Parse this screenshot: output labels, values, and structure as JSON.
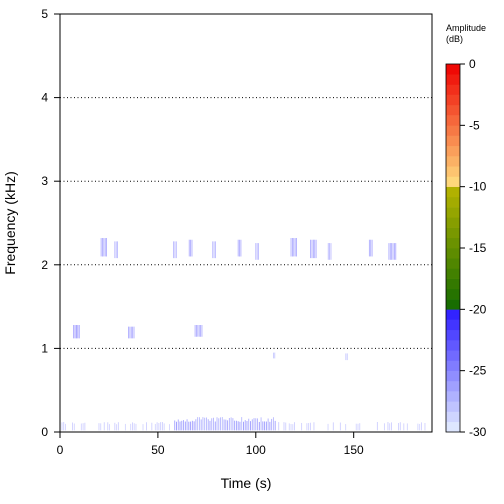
{
  "chart_data": {
    "type": "heatmap",
    "title": "",
    "xlabel": "Time (s)",
    "ylabel": "Frequency (kHz)",
    "xlim": [
      0,
      190
    ],
    "ylim": [
      0,
      5
    ],
    "x_ticks": [
      0,
      50,
      100,
      150
    ],
    "y_ticks": [
      0,
      1,
      2,
      3,
      4,
      5
    ],
    "grid": "horizontal dotted lines at 1, 2, 3, 4 kHz",
    "colorbar": {
      "title_line1": "Amplitude",
      "title_line2": "(dB)",
      "range": [
        -30,
        0
      ],
      "ticks": [
        0,
        -5,
        -10,
        -15,
        -20,
        -25,
        -30
      ],
      "position": "right",
      "bands": [
        {
          "from": -30,
          "to": -20,
          "color_low": "#e6f0ff",
          "color_high": "#2a1aff"
        },
        {
          "from": -20,
          "to": -10,
          "color_low": "#116a00",
          "color_high": "#b8b400"
        },
        {
          "from": -10,
          "to": 0,
          "color_low": "#ffe080",
          "color_high": "#ee0000"
        }
      ]
    },
    "energy_events": [
      {
        "time_start": 7,
        "time_end": 10,
        "freq_low": 1.12,
        "freq_high": 1.28,
        "level_db": -24
      },
      {
        "time_start": 21,
        "time_end": 24,
        "freq_low": 2.1,
        "freq_high": 2.32,
        "level_db": -25
      },
      {
        "time_start": 28,
        "time_end": 30,
        "freq_low": 2.08,
        "freq_high": 2.28,
        "level_db": -26
      },
      {
        "time_start": 35,
        "time_end": 38,
        "freq_low": 1.12,
        "freq_high": 1.26,
        "level_db": -25
      },
      {
        "time_start": 58,
        "time_end": 60,
        "freq_low": 2.08,
        "freq_high": 2.28,
        "level_db": -26
      },
      {
        "time_start": 66,
        "time_end": 68,
        "freq_low": 2.1,
        "freq_high": 2.3,
        "level_db": -25
      },
      {
        "time_start": 69,
        "time_end": 73,
        "freq_low": 1.14,
        "freq_high": 1.28,
        "level_db": -25
      },
      {
        "time_start": 78,
        "time_end": 80,
        "freq_low": 2.08,
        "freq_high": 2.28,
        "level_db": -26
      },
      {
        "time_start": 91,
        "time_end": 93,
        "freq_low": 2.1,
        "freq_high": 2.3,
        "level_db": -25
      },
      {
        "time_start": 100,
        "time_end": 102,
        "freq_low": 2.06,
        "freq_high": 2.26,
        "level_db": -26
      },
      {
        "time_start": 118,
        "time_end": 121,
        "freq_low": 2.1,
        "freq_high": 2.32,
        "level_db": -25
      },
      {
        "time_start": 128,
        "time_end": 131,
        "freq_low": 2.08,
        "freq_high": 2.3,
        "level_db": -25
      },
      {
        "time_start": 137,
        "time_end": 139,
        "freq_low": 2.06,
        "freq_high": 2.26,
        "level_db": -26
      },
      {
        "time_start": 158,
        "time_end": 160,
        "freq_low": 2.1,
        "freq_high": 2.3,
        "level_db": -25
      },
      {
        "time_start": 168,
        "time_end": 172,
        "freq_low": 2.06,
        "freq_high": 2.26,
        "level_db": -25
      },
      {
        "time_start": 109,
        "time_end": 110,
        "freq_low": 0.88,
        "freq_high": 0.95,
        "level_db": -27
      },
      {
        "time_start": 146,
        "time_end": 147,
        "freq_low": 0.86,
        "freq_high": 0.94,
        "level_db": -27
      }
    ],
    "noise_band": {
      "freq_low": 0.0,
      "freq_high": 0.12,
      "time_start": 0,
      "time_end": 190,
      "level_db": -28,
      "peak_segment": {
        "time_start": 58,
        "time_end": 110,
        "level_db": -25
      }
    }
  }
}
